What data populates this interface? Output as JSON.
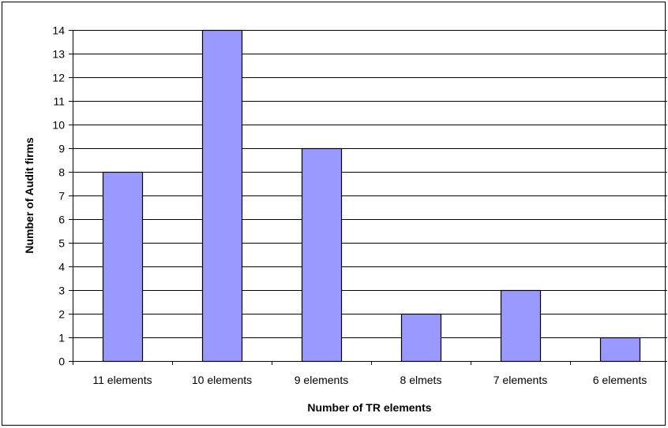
{
  "chart_data": {
    "type": "bar",
    "title": "",
    "xlabel": "Number of TR elements",
    "ylabel": "Number of Audit firms",
    "categories": [
      "11 elements",
      "10 elements",
      "9 elements",
      "8 elmets",
      "7 elements",
      "6 elements"
    ],
    "values": [
      8,
      14,
      9,
      2,
      3,
      1
    ],
    "ylim": [
      0,
      14
    ],
    "yticks": [
      0,
      1,
      2,
      3,
      4,
      5,
      6,
      7,
      8,
      9,
      10,
      11,
      12,
      13,
      14
    ],
    "grid": true,
    "legend": "none",
    "colors": {
      "bar_fill": "#9999FF",
      "bar_stroke": "#000000",
      "grid": "#000000",
      "axis": "#000000"
    }
  }
}
